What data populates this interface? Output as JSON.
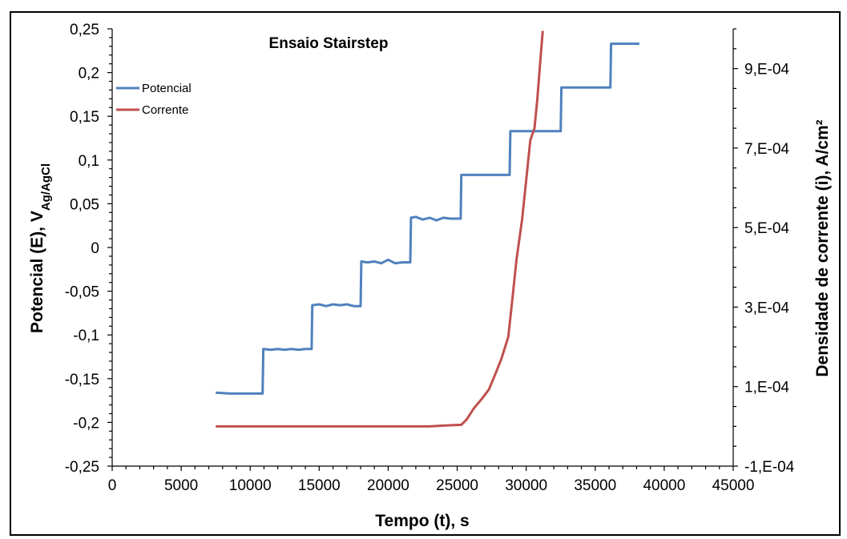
{
  "chart_data": {
    "type": "line",
    "title": "Ensaio Stairstep",
    "xlabel": "Tempo (t), s",
    "ylabel": {
      "main": "Potencial (E),  V",
      "sub": "Ag/AgCl"
    },
    "y2label": "Densidade de corrente (i), A/cm²",
    "xlim": [
      0,
      45000
    ],
    "ylim": [
      -0.25,
      0.25
    ],
    "y2lim": [
      -0.0001,
      0.001
    ],
    "x_ticks": [
      0,
      5000,
      10000,
      15000,
      20000,
      25000,
      30000,
      35000,
      40000,
      45000
    ],
    "x_tick_labels": [
      "0",
      "5000",
      "10000",
      "15000",
      "20000",
      "25000",
      "30000",
      "35000",
      "40000",
      "45000"
    ],
    "y_ticks": [
      -0.25,
      -0.2,
      -0.15,
      -0.1,
      -0.05,
      0,
      0.05,
      0.1,
      0.15,
      0.2,
      0.25
    ],
    "y_tick_labels": [
      "-0,25",
      "-0,2",
      "-0,15",
      "-0,1",
      "-0,05",
      "0",
      "0,05",
      "0,1",
      "0,15",
      "0,2",
      "0,25"
    ],
    "y2_ticks": [
      -0.0001,
      0.0001,
      0.0003,
      0.0005,
      0.0007,
      0.0009
    ],
    "y2_tick_labels": [
      "-1,E-04",
      "1,E-04",
      "3,E-04",
      "5,E-04",
      "7,E-04",
      "9,E-04"
    ],
    "legend_position": "top-left",
    "grid": false,
    "series": [
      {
        "name": "Potencial",
        "axis": "left",
        "color": "#4f81bd",
        "x": [
          7500,
          8500,
          9500,
          10500,
          10900,
          10950,
          11500,
          12000,
          12500,
          13000,
          13500,
          14000,
          14450,
          14500,
          15000,
          15500,
          16000,
          16500,
          17000,
          17500,
          18000,
          18050,
          18500,
          19000,
          19500,
          20000,
          20500,
          21000,
          21600,
          21650,
          22000,
          22500,
          23000,
          23500,
          24000,
          24500,
          25250,
          25300,
          26000,
          27000,
          28000,
          28800,
          28850,
          30000,
          31000,
          32500,
          32550,
          34000,
          35000,
          36100,
          36150,
          37000,
          38200
        ],
        "y": [
          -0.166,
          -0.167,
          -0.167,
          -0.167,
          -0.167,
          -0.116,
          -0.117,
          -0.116,
          -0.117,
          -0.116,
          -0.117,
          -0.116,
          -0.116,
          -0.066,
          -0.065,
          -0.067,
          -0.065,
          -0.066,
          -0.065,
          -0.067,
          -0.067,
          -0.016,
          -0.017,
          -0.016,
          -0.018,
          -0.014,
          -0.018,
          -0.017,
          -0.017,
          0.034,
          0.035,
          0.032,
          0.034,
          0.031,
          0.034,
          0.033,
          0.033,
          0.083,
          0.083,
          0.083,
          0.083,
          0.083,
          0.133,
          0.133,
          0.133,
          0.133,
          0.183,
          0.183,
          0.183,
          0.183,
          0.233,
          0.233,
          0.233
        ]
      },
      {
        "name": "Corrente",
        "axis": "right",
        "color": "#c0504d",
        "x": [
          7500,
          10000,
          15000,
          20000,
          23000,
          23500,
          24000,
          25300,
          25700,
          26200,
          26800,
          27300,
          27800,
          28200,
          28700,
          29000,
          29300,
          29700,
          30000,
          30300,
          30600,
          30800,
          31000,
          31200
        ],
        "y": [
          0.0,
          0.0,
          0.0,
          0.0,
          0.0,
          1e-06,
          2e-06,
          4e-06,
          1.8e-05,
          4.5e-05,
          7e-05,
          9.3e-05,
          0.000135,
          0.00017,
          0.000225,
          0.00032,
          0.00042,
          0.00052,
          0.00062,
          0.00072,
          0.00075,
          0.00082,
          0.00091,
          0.000995
        ]
      }
    ]
  }
}
